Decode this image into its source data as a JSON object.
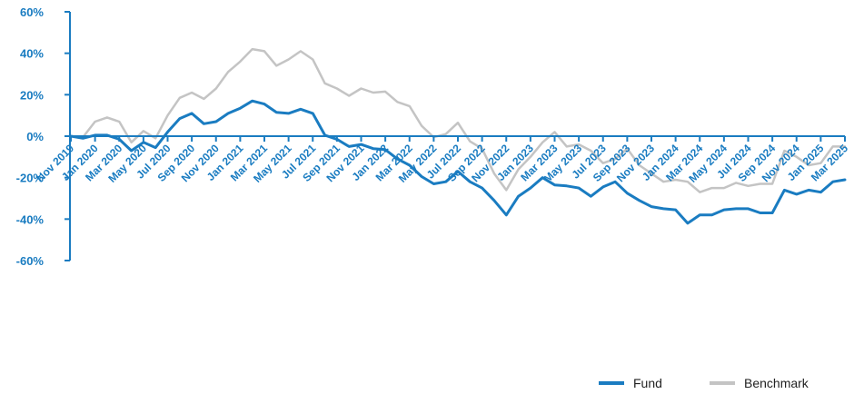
{
  "chart_data": {
    "type": "line",
    "title": "",
    "xlabel": "",
    "ylabel": "",
    "ylim": [
      -60,
      60
    ],
    "yticks": [
      -60,
      -40,
      -20,
      0,
      20,
      40,
      60
    ],
    "ytick_labels": [
      "-60%",
      "-40%",
      "-20%",
      "0%",
      "20%",
      "40%",
      "60%"
    ],
    "x_tick_labels": [
      "Nov 2019",
      "Jan 2020",
      "Mar 2020",
      "May 2020",
      "Jul 2020",
      "Sep 2020",
      "Nov 2020",
      "Jan 2021",
      "Mar 2021",
      "May 2021",
      "Jul 2021",
      "Sep 2021",
      "Nov 2021",
      "Jan 2022",
      "Mar 2022",
      "May 2022",
      "Jul 2022",
      "Sep 2022",
      "Nov 2022",
      "Jan 2023",
      "Mar 2023",
      "May 2023",
      "Jul 2023",
      "Sep 2023",
      "Nov 2023",
      "Jan 2024",
      "Mar 2024",
      "May 2024",
      "Jul 2024",
      "Sep 2024",
      "Nov 2024",
      "Jan 2025",
      "Mar 2025"
    ],
    "grid": false,
    "legend": "bottom-right",
    "series": [
      {
        "name": "Fund",
        "color": "#1a7cc1",
        "values": [
          0,
          -1,
          0.5,
          0.5,
          -1.5,
          -7,
          -3,
          -5.5,
          2,
          8.5,
          11,
          6,
          7,
          11,
          13.5,
          17,
          15.5,
          11.5,
          11,
          13,
          11,
          0.5,
          -1.5,
          -5,
          -4,
          -6,
          -6.5,
          -11,
          -14,
          -19.5,
          -23,
          -22,
          -17,
          -22,
          -25,
          -31,
          -38,
          -29,
          -25,
          -20,
          -23.5,
          -24,
          -25,
          -29,
          -24.5,
          -22,
          -27.5,
          -31,
          -34,
          -35,
          -35.5,
          -42,
          -38,
          -38,
          -35.5,
          -35,
          -35,
          -37,
          -37,
          -26,
          -28,
          -26,
          -27,
          -22,
          -21
        ]
      },
      {
        "name": "Benchmark",
        "color": "#c4c4c4",
        "values": [
          0,
          -0.5,
          7,
          9,
          7,
          -3,
          2.5,
          -1,
          10,
          18.5,
          21,
          18,
          23,
          31,
          36,
          42,
          41,
          34,
          37,
          41,
          37,
          25.5,
          23,
          19.5,
          23,
          21,
          21.5,
          16.5,
          14.5,
          5,
          -0.5,
          1,
          6.5,
          -2.5,
          -6,
          -18,
          -26,
          -16,
          -10,
          -3,
          2,
          -5,
          -4,
          -7,
          -13,
          -11,
          -6,
          -14,
          -18,
          -22,
          -21,
          -22,
          -27,
          -25,
          -25,
          -22.5,
          -24,
          -23,
          -23,
          -7,
          -10,
          -14,
          -13,
          -5,
          -5
        ]
      }
    ]
  }
}
